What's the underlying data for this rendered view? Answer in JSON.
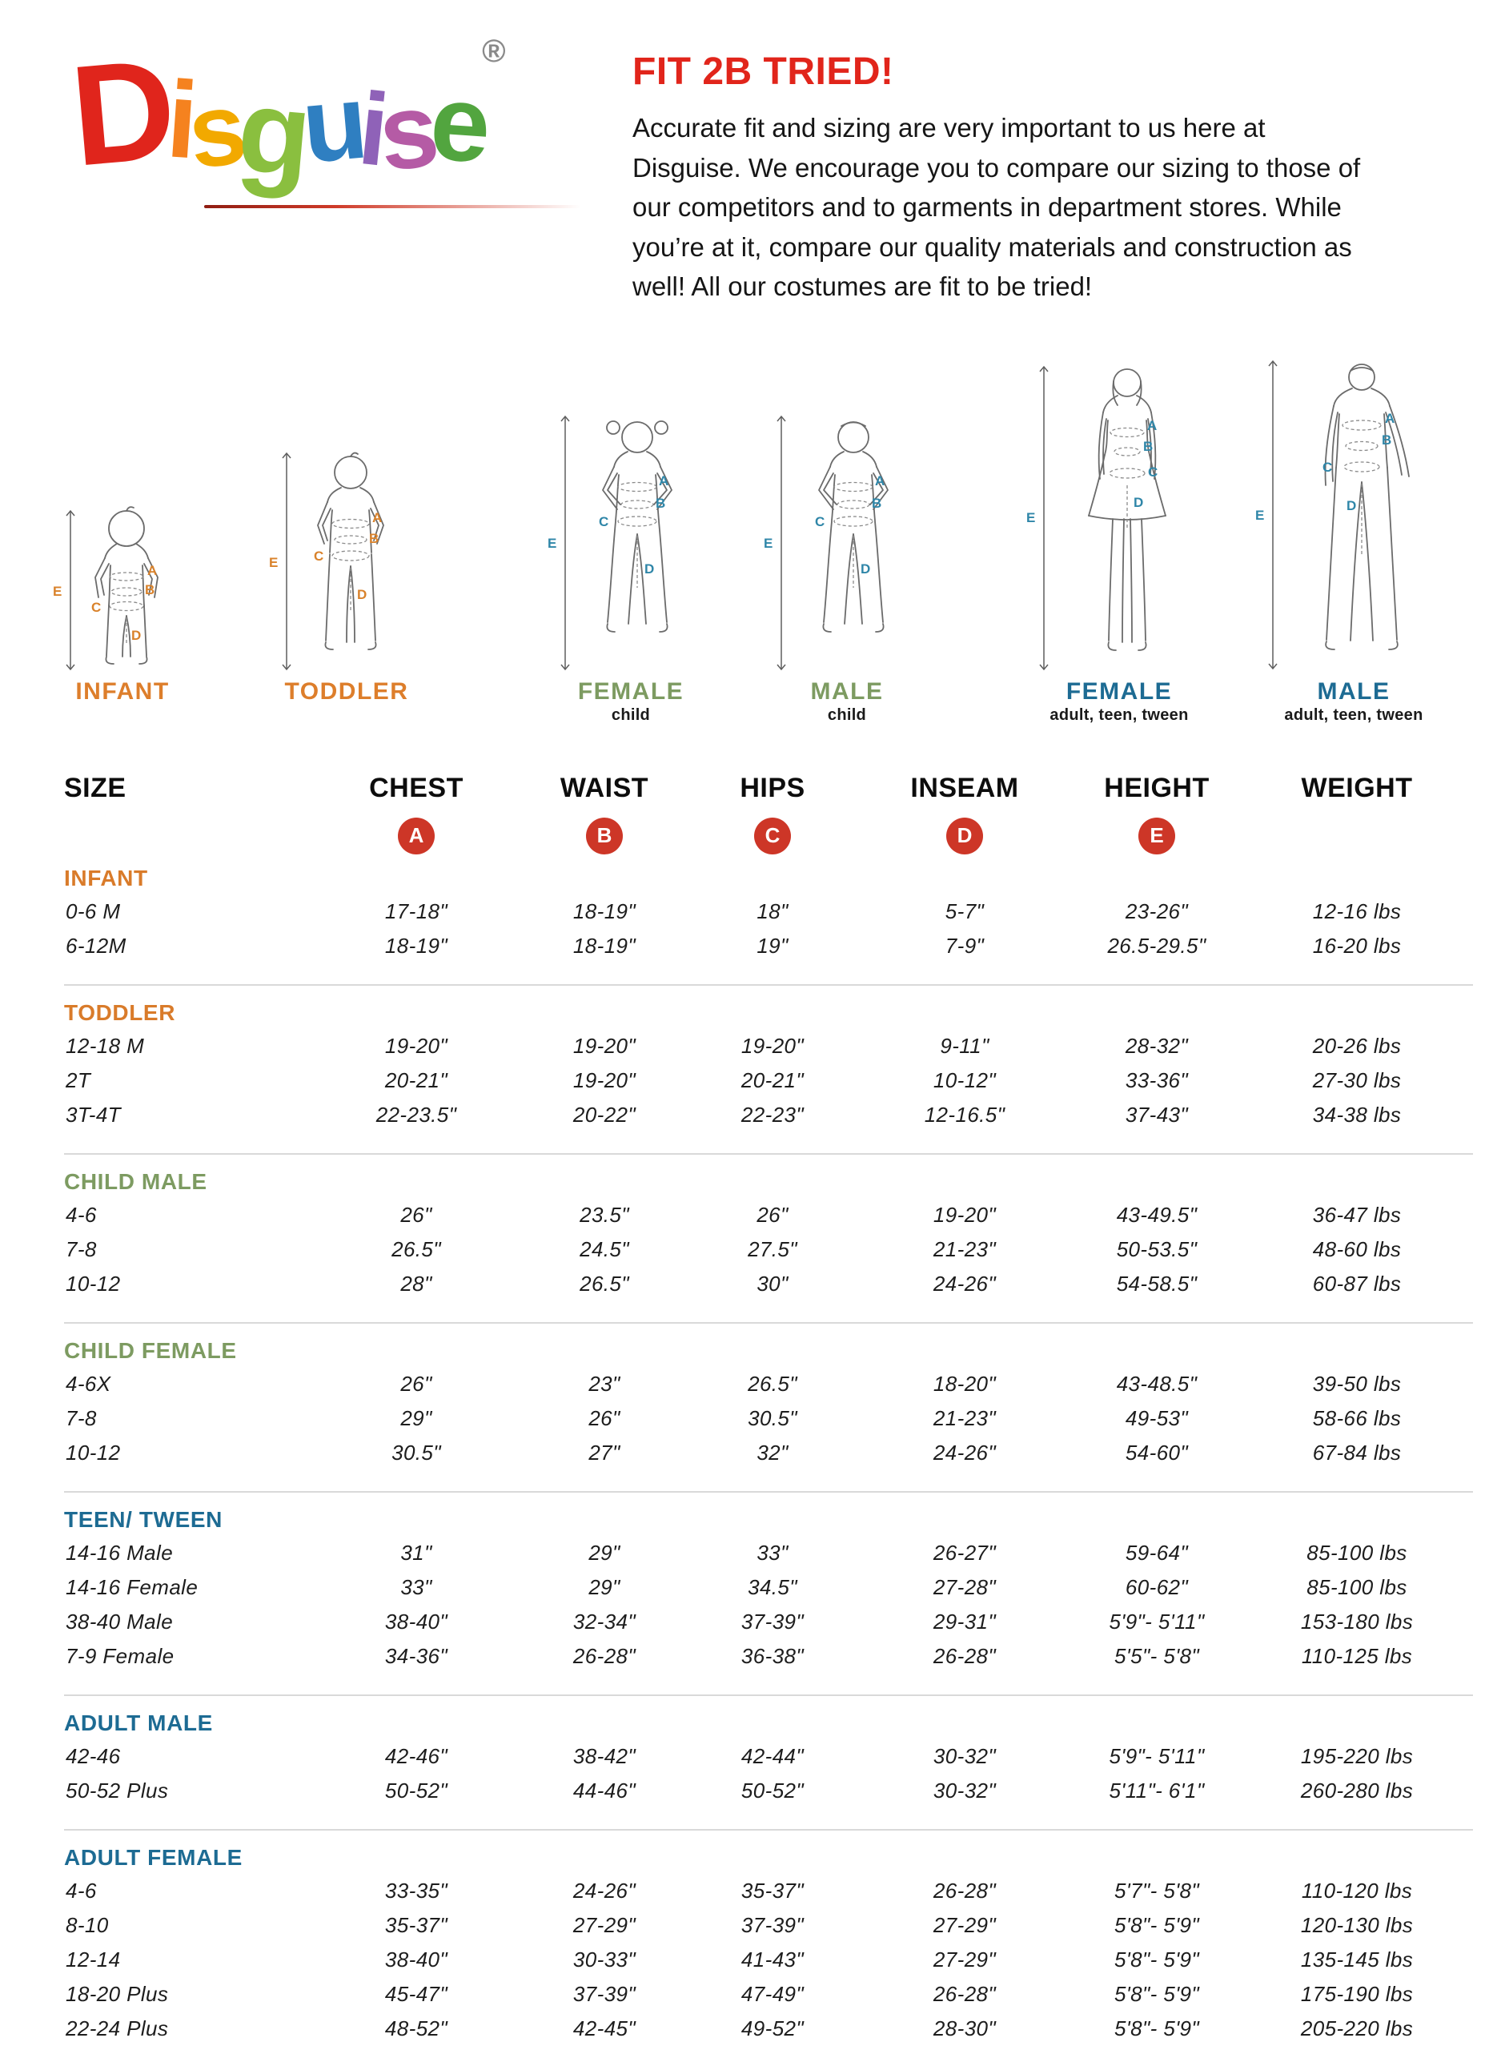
{
  "logo": {
    "word": "Disguise",
    "letters": [
      {
        "ch": "D",
        "color": "#e0251c"
      },
      {
        "ch": "i",
        "color": "#f5821f"
      },
      {
        "ch": "s",
        "color": "#f2a900"
      },
      {
        "ch": "g",
        "color": "#8abf3f"
      },
      {
        "ch": "u",
        "color": "#2f7fc1"
      },
      {
        "ch": "i",
        "color": "#8f62b8"
      },
      {
        "ch": "s",
        "color": "#b55ba5"
      },
      {
        "ch": "e",
        "color": "#52a53f"
      }
    ],
    "registered": "®",
    "rule_color": "#b22318"
  },
  "intro": {
    "title": "FIT 2B TRIED!",
    "title_color": "#e1251b",
    "body": "Accurate fit and sizing are very important to us here at Disguise. We encourage you to compare our sizing to those of our competitors and to garments in department stores. While you’re at it, compare our quality materials and construction as well! All our costumes are fit to be tried!"
  },
  "figures": [
    {
      "label": "INFANT",
      "sublabel": "",
      "color": "#dd7e2b",
      "letter_color": "#d9822b",
      "letters": [
        "A",
        "B",
        "C",
        "D",
        "E"
      ]
    },
    {
      "label": "TODDLER",
      "sublabel": "",
      "color": "#dd7e2b",
      "letter_color": "#d9822b",
      "letters": [
        "A",
        "B",
        "C",
        "D",
        "E"
      ]
    },
    {
      "label": "FEMALE",
      "sublabel": "child",
      "color": "#7d9b61",
      "letter_color": "#2f86a8",
      "letters": [
        "A",
        "B",
        "C",
        "D",
        "E"
      ]
    },
    {
      "label": "MALE",
      "sublabel": "child",
      "color": "#7d9b61",
      "letter_color": "#2f86a8",
      "letters": [
        "A",
        "B",
        "C",
        "D",
        "E"
      ]
    },
    {
      "label": "FEMALE",
      "sublabel": "adult, teen, tween",
      "color": "#1d6b93",
      "letter_color": "#2f86a8",
      "letters": [
        "A",
        "B",
        "C",
        "D",
        "E"
      ]
    },
    {
      "label": "MALE",
      "sublabel": "adult, teen, tween",
      "color": "#1d6b93",
      "letter_color": "#2f86a8",
      "letters": [
        "A",
        "B",
        "C",
        "D",
        "E"
      ]
    }
  ],
  "table": {
    "columns": [
      "SIZE",
      "CHEST",
      "WAIST",
      "HIPS",
      "INSEAM",
      "HEIGHT",
      "WEIGHT"
    ],
    "badges": [
      "A",
      "B",
      "C",
      "D",
      "E"
    ],
    "badge_color": "#cd3627",
    "sections": [
      {
        "name": "INFANT",
        "color": "#d97b2a",
        "rows": [
          {
            "size": "0-6 M",
            "cells": [
              "17-18\"",
              "18-19\"",
              "18\"",
              "5-7\"",
              "23-26\"",
              "12-16 lbs"
            ]
          },
          {
            "size": "6-12M",
            "cells": [
              "18-19\"",
              "18-19\"",
              "19\"",
              "7-9\"",
              "26.5-29.5\"",
              "16-20 lbs"
            ]
          }
        ]
      },
      {
        "name": "TODDLER",
        "color": "#d97b2a",
        "rows": [
          {
            "size": "12-18 M",
            "cells": [
              "19-20\"",
              "19-20\"",
              "19-20\"",
              "9-11\"",
              "28-32\"",
              "20-26 lbs"
            ]
          },
          {
            "size": "2T",
            "cells": [
              "20-21\"",
              "19-20\"",
              "20-21\"",
              "10-12\"",
              "33-36\"",
              "27-30 lbs"
            ]
          },
          {
            "size": "3T-4T",
            "cells": [
              "22-23.5\"",
              "20-22\"",
              "22-23\"",
              "12-16.5\"",
              "37-43\"",
              "34-38 lbs"
            ]
          }
        ]
      },
      {
        "name": "CHILD MALE",
        "color": "#7d9b61",
        "rows": [
          {
            "size": "4-6",
            "cells": [
              "26\"",
              "23.5\"",
              "26\"",
              "19-20\"",
              "43-49.5\"",
              "36-47 lbs"
            ]
          },
          {
            "size": "7-8",
            "cells": [
              "26.5\"",
              "24.5\"",
              "27.5\"",
              "21-23\"",
              "50-53.5\"",
              "48-60 lbs"
            ]
          },
          {
            "size": "10-12",
            "cells": [
              "28\"",
              "26.5\"",
              "30\"",
              "24-26\"",
              "54-58.5\"",
              "60-87 lbs"
            ]
          }
        ]
      },
      {
        "name": "CHILD FEMALE",
        "color": "#7d9b61",
        "rows": [
          {
            "size": "4-6X",
            "cells": [
              "26\"",
              "23\"",
              "26.5\"",
              "18-20\"",
              "43-48.5\"",
              "39-50 lbs"
            ]
          },
          {
            "size": "7-8",
            "cells": [
              "29\"",
              "26\"",
              "30.5\"",
              "21-23\"",
              "49-53\"",
              "58-66 lbs"
            ]
          },
          {
            "size": "10-12",
            "cells": [
              "30.5\"",
              "27\"",
              "32\"",
              "24-26\"",
              "54-60\"",
              "67-84 lbs"
            ]
          }
        ]
      },
      {
        "name": "TEEN/ TWEEN",
        "color": "#1d6b93",
        "rows": [
          {
            "size": "14-16 Male",
            "cells": [
              "31\"",
              "29\"",
              "33\"",
              "26-27\"",
              "59-64\"",
              "85-100 lbs"
            ]
          },
          {
            "size": "14-16 Female",
            "cells": [
              "33\"",
              "29\"",
              "34.5\"",
              "27-28\"",
              "60-62\"",
              "85-100 lbs"
            ]
          },
          {
            "size": "38-40 Male",
            "cells": [
              "38-40\"",
              "32-34\"",
              "37-39\"",
              "29-31\"",
              "5'9\"- 5'11\"",
              "153-180 lbs"
            ]
          },
          {
            "size": "7-9 Female",
            "cells": [
              "34-36\"",
              "26-28\"",
              "36-38\"",
              "26-28\"",
              "5'5\"- 5'8\"",
              "110-125 lbs"
            ]
          }
        ]
      },
      {
        "name": "ADULT MALE",
        "color": "#1d6b93",
        "rows": [
          {
            "size": "42-46",
            "cells": [
              "42-46\"",
              "38-42\"",
              "42-44\"",
              "30-32\"",
              "5'9\"- 5'11\"",
              "195-220 lbs"
            ]
          },
          {
            "size": "50-52 Plus",
            "cells": [
              "50-52\"",
              "44-46\"",
              "50-52\"",
              "30-32\"",
              "5'11\"- 6'1\"",
              "260-280 lbs"
            ]
          }
        ]
      },
      {
        "name": "ADULT FEMALE",
        "color": "#1d6b93",
        "rows": [
          {
            "size": "4-6",
            "cells": [
              "33-35\"",
              "24-26\"",
              "35-37\"",
              "26-28\"",
              "5'7\"- 5'8\"",
              "110-120 lbs"
            ]
          },
          {
            "size": "8-10",
            "cells": [
              "35-37\"",
              "27-29\"",
              "37-39\"",
              "27-29\"",
              "5'8\"- 5'9\"",
              "120-130 lbs"
            ]
          },
          {
            "size": "12-14",
            "cells": [
              "38-40\"",
              "30-33\"",
              "41-43\"",
              "27-29\"",
              "5'8\"- 5'9\"",
              "135-145 lbs"
            ]
          },
          {
            "size": "18-20 Plus",
            "cells": [
              "45-47\"",
              "37-39\"",
              "47-49\"",
              "26-28\"",
              "5'8\"- 5'9\"",
              "175-190 lbs"
            ]
          },
          {
            "size": "22-24 Plus",
            "cells": [
              "48-52\"",
              "42-45\"",
              "49-52\"",
              "28-30\"",
              "5'8\"- 5'9\"",
              "205-220 lbs"
            ]
          }
        ]
      }
    ]
  }
}
